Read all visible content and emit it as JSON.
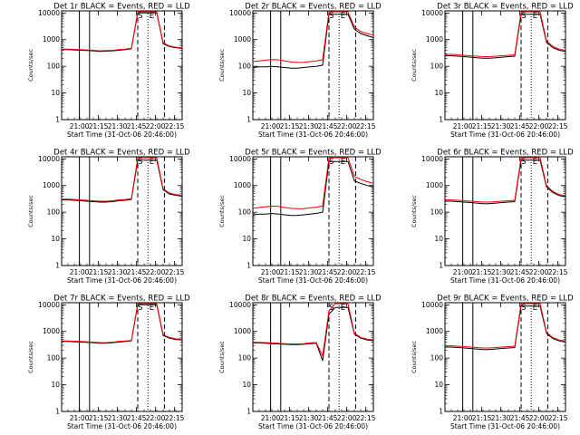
{
  "chart_data": {
    "type": "line",
    "title_template": "Det {det} BLACK = Events, RED = LLD",
    "xlabel": "Start Time (31-Oct-06 20:46:00)",
    "ylabel": "Counts/sec",
    "yscale": "log",
    "ylim": [
      1,
      12000
    ],
    "yticks": [
      1,
      10,
      100,
      1000,
      10000
    ],
    "ytick_labels": [
      "1",
      "10",
      "100",
      "1000",
      "10000"
    ],
    "xlim_minutes": [
      0,
      95
    ],
    "xticks_minutes": [
      14,
      29,
      44,
      59,
      74,
      89
    ],
    "xtick_labels": [
      "21:00",
      "21:15",
      "21:30",
      "21:45",
      "22:00",
      "22:15"
    ],
    "series_colors": {
      "events": "#000000",
      "lld": "#ff0000"
    },
    "panels": [
      {
        "det": "1r",
        "time_min": [
          0,
          5,
          10,
          15,
          20,
          25,
          30,
          35,
          40,
          45,
          50,
          55,
          60,
          65,
          70,
          75,
          80,
          85,
          90,
          95
        ],
        "events": [
          420,
          420,
          410,
          400,
          390,
          380,
          360,
          370,
          380,
          400,
          420,
          450,
          10000,
          10000,
          10000,
          10000,
          700,
          550,
          500,
          470
        ],
        "lld": [
          440,
          440,
          430,
          420,
          410,
          400,
          380,
          390,
          400,
          420,
          440,
          470,
          11000,
          11000,
          11000,
          11000,
          750,
          580,
          520,
          490
        ]
      },
      {
        "det": "2r",
        "time_min": [
          0,
          5,
          10,
          15,
          20,
          25,
          30,
          35,
          40,
          45,
          50,
          55,
          60,
          65,
          70,
          75,
          80,
          85,
          90,
          95
        ],
        "events": [
          90,
          95,
          95,
          100,
          95,
          90,
          85,
          85,
          90,
          95,
          100,
          110,
          9000,
          9000,
          9000,
          9000,
          2500,
          1700,
          1400,
          1200
        ],
        "lld": [
          150,
          160,
          170,
          180,
          175,
          160,
          145,
          140,
          140,
          150,
          160,
          175,
          11000,
          11000,
          11000,
          11000,
          3000,
          2000,
          1700,
          1500
        ]
      },
      {
        "det": "3r",
        "time_min": [
          0,
          5,
          10,
          15,
          20,
          25,
          30,
          35,
          40,
          45,
          50,
          55,
          60,
          65,
          70,
          75,
          80,
          85,
          90,
          95
        ],
        "events": [
          250,
          250,
          240,
          230,
          220,
          210,
          200,
          200,
          210,
          220,
          230,
          240,
          9000,
          9000,
          9000,
          9000,
          800,
          500,
          400,
          360
        ],
        "lld": [
          280,
          280,
          270,
          260,
          250,
          240,
          230,
          230,
          240,
          250,
          260,
          270,
          11000,
          11000,
          11000,
          11000,
          900,
          560,
          440,
          400
        ]
      },
      {
        "det": "4r",
        "time_min": [
          0,
          5,
          10,
          15,
          20,
          25,
          30,
          35,
          40,
          45,
          50,
          55,
          60,
          65,
          70,
          75,
          80,
          85,
          90,
          95
        ],
        "events": [
          290,
          290,
          280,
          270,
          260,
          250,
          240,
          240,
          250,
          270,
          280,
          300,
          9000,
          9000,
          9000,
          9000,
          700,
          480,
          430,
          400
        ],
        "lld": [
          310,
          310,
          300,
          290,
          280,
          270,
          260,
          260,
          270,
          290,
          300,
          320,
          11000,
          11000,
          11000,
          11000,
          760,
          520,
          460,
          430
        ]
      },
      {
        "det": "5r",
        "time_min": [
          0,
          5,
          10,
          15,
          20,
          25,
          30,
          35,
          40,
          45,
          50,
          55,
          60,
          65,
          70,
          75,
          80,
          85,
          90,
          95
        ],
        "events": [
          80,
          85,
          85,
          90,
          85,
          80,
          75,
          75,
          80,
          85,
          90,
          100,
          8000,
          8000,
          8000,
          8000,
          1500,
          1200,
          1000,
          900
        ],
        "lld": [
          140,
          150,
          160,
          170,
          165,
          150,
          140,
          135,
          135,
          145,
          155,
          170,
          11000,
          11000,
          11000,
          11000,
          2200,
          1700,
          1400,
          1200
        ]
      },
      {
        "det": "6r",
        "time_min": [
          0,
          5,
          10,
          15,
          20,
          25,
          30,
          35,
          40,
          45,
          50,
          55,
          60,
          65,
          70,
          75,
          80,
          85,
          90,
          95
        ],
        "events": [
          260,
          260,
          250,
          240,
          230,
          220,
          210,
          210,
          220,
          230,
          240,
          250,
          9000,
          9000,
          9000,
          9000,
          900,
          550,
          420,
          380
        ],
        "lld": [
          290,
          290,
          280,
          270,
          260,
          250,
          240,
          240,
          250,
          260,
          270,
          280,
          11000,
          11000,
          11000,
          11000,
          1000,
          600,
          460,
          420
        ]
      },
      {
        "det": "7r",
        "time_min": [
          0,
          5,
          10,
          15,
          20,
          25,
          30,
          35,
          40,
          45,
          50,
          55,
          60,
          65,
          70,
          75,
          80,
          85,
          90,
          95
        ],
        "events": [
          420,
          420,
          410,
          400,
          390,
          380,
          360,
          360,
          380,
          400,
          420,
          440,
          10000,
          10000,
          10000,
          10000,
          700,
          560,
          500,
          480
        ],
        "lld": [
          440,
          440,
          430,
          420,
          410,
          400,
          380,
          380,
          400,
          420,
          440,
          460,
          11000,
          11000,
          11000,
          11000,
          760,
          600,
          530,
          510
        ]
      },
      {
        "det": "8r",
        "time_min": [
          0,
          5,
          10,
          15,
          20,
          25,
          30,
          35,
          40,
          45,
          50,
          55,
          60,
          65,
          70,
          75,
          80,
          85,
          90,
          95
        ],
        "events": [
          370,
          370,
          360,
          350,
          340,
          330,
          320,
          320,
          330,
          350,
          360,
          80,
          4500,
          8000,
          8000,
          8000,
          800,
          560,
          480,
          450
        ],
        "lld": [
          390,
          390,
          380,
          370,
          360,
          350,
          340,
          340,
          350,
          370,
          380,
          120,
          6000,
          11000,
          11000,
          11000,
          860,
          600,
          520,
          480
        ]
      },
      {
        "det": "9r",
        "time_min": [
          0,
          5,
          10,
          15,
          20,
          25,
          30,
          35,
          40,
          45,
          50,
          55,
          60,
          65,
          70,
          75,
          80,
          85,
          90,
          95
        ],
        "events": [
          260,
          260,
          250,
          240,
          230,
          220,
          210,
          210,
          220,
          230,
          240,
          250,
          9000,
          9000,
          9000,
          9000,
          850,
          540,
          440,
          400
        ],
        "lld": [
          290,
          290,
          280,
          270,
          260,
          250,
          240,
          240,
          250,
          260,
          270,
          280,
          11000,
          11000,
          11000,
          11000,
          930,
          590,
          480,
          440
        ]
      }
    ],
    "solid_vlines_minutes": [
      14,
      22
    ],
    "dashed_vlines_minutes": [
      60,
      81
    ],
    "dotted_vlines_minutes": [
      68
    ],
    "markers": [
      {
        "label": "S",
        "minute": 62
      },
      {
        "label": "E",
        "minute": 71
      }
    ]
  }
}
